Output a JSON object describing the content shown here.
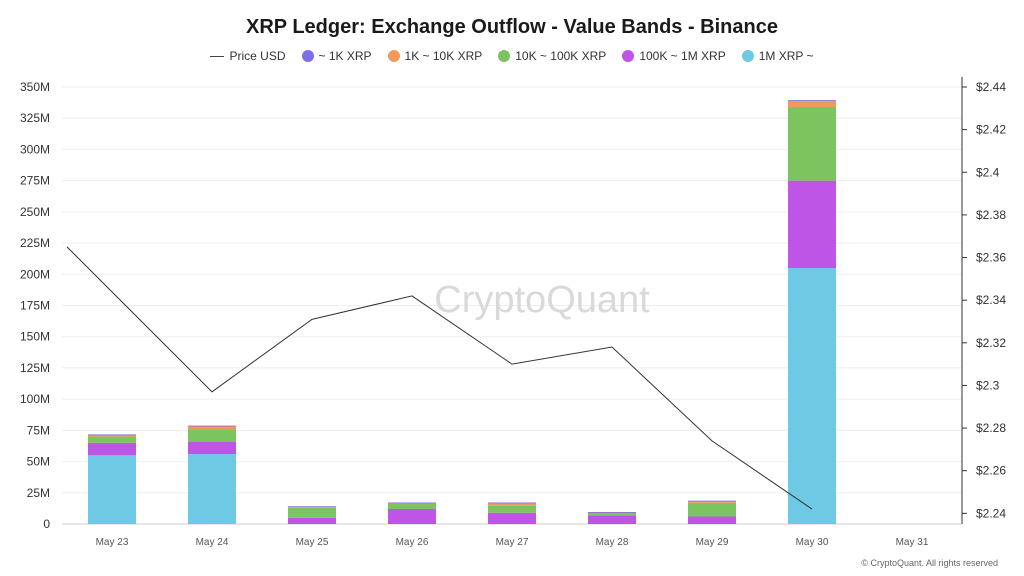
{
  "chart_data": {
    "type": "bar",
    "title": "XRP Ledger: Exchange Outflow - Value Bands - Binance",
    "categories": [
      "May 23",
      "May 24",
      "May 25",
      "May 26",
      "May 27",
      "May 28",
      "May 29",
      "May 30",
      "May 31"
    ],
    "left_axis": {
      "ylim": [
        0,
        350000000
      ],
      "ticks": [
        0,
        25000000,
        50000000,
        75000000,
        100000000,
        125000000,
        150000000,
        175000000,
        200000000,
        225000000,
        250000000,
        275000000,
        300000000,
        325000000,
        350000000
      ],
      "tick_labels": [
        "0",
        "25M",
        "50M",
        "75M",
        "100M",
        "125M",
        "150M",
        "175M",
        "200M",
        "225M",
        "250M",
        "275M",
        "300M",
        "325M",
        "350M"
      ]
    },
    "right_axis": {
      "ylim": [
        2.235,
        2.44
      ],
      "ticks": [
        2.24,
        2.26,
        2.28,
        2.3,
        2.32,
        2.34,
        2.36,
        2.38,
        2.4,
        2.42,
        2.44
      ],
      "tick_labels": [
        "$2.24",
        "$2.26",
        "$2.28",
        "$2.3",
        "$2.32",
        "$2.34",
        "$2.36",
        "$2.38",
        "$2.4",
        "$2.42",
        "$2.44"
      ]
    },
    "stacked": true,
    "series": [
      {
        "name": "1M XRP ~",
        "color": "#6ec9e4",
        "values": [
          55000000,
          56000000,
          0,
          0,
          0,
          0,
          0,
          205000000,
          0
        ]
      },
      {
        "name": "100K ~ 1M XRP",
        "color": "#bf55e6",
        "values": [
          10000000,
          10000000,
          5000000,
          12000000,
          9000000,
          7000000,
          6000000,
          70000000,
          0
        ]
      },
      {
        "name": "10K ~ 100K XRP",
        "color": "#7cc45f",
        "values": [
          5000000,
          10000000,
          8000000,
          4000000,
          6000000,
          2000000,
          11000000,
          59000000,
          0
        ]
      },
      {
        "name": "1K ~ 10K XRP",
        "color": "#ef9a5b",
        "values": [
          1500000,
          2500000,
          1000000,
          1000000,
          2000000,
          500000,
          1500000,
          5000000,
          0
        ]
      },
      {
        "name": "~ 1K XRP",
        "color": "#7b6ee6",
        "values": [
          200000,
          300000,
          200000,
          200000,
          200000,
          100000,
          200000,
          500000,
          0
        ]
      }
    ],
    "line_series": {
      "name": "Price USD",
      "color": "#333333",
      "x_start_label": "",
      "values": [
        2.365,
        2.297,
        2.331,
        2.342,
        2.31,
        2.318,
        2.274,
        2.242
      ]
    },
    "legend_order": [
      "Price USD",
      "~ 1K XRP",
      "1K ~ 10K XRP",
      "10K ~ 100K XRP",
      "100K ~ 1M XRP",
      "1M XRP ~"
    ],
    "legend_position": "top-center",
    "grid": true
  },
  "legend": {
    "items": [
      {
        "label": "Price USD",
        "kind": "line",
        "color": "#444444"
      },
      {
        "label": "~ 1K XRP",
        "kind": "dot",
        "color": "#7b6ee6"
      },
      {
        "label": "1K ~ 10K XRP",
        "kind": "dot",
        "color": "#ef9a5b"
      },
      {
        "label": "10K ~ 100K XRP",
        "kind": "dot",
        "color": "#7cc45f"
      },
      {
        "label": "100K ~ 1M XRP",
        "kind": "dot",
        "color": "#bf55e6"
      },
      {
        "label": "1M XRP ~",
        "kind": "dot",
        "color": "#6ec9e4"
      }
    ]
  },
  "watermark": "CryptoQuant",
  "copyright": "© CryptoQuant. All rights reserved"
}
